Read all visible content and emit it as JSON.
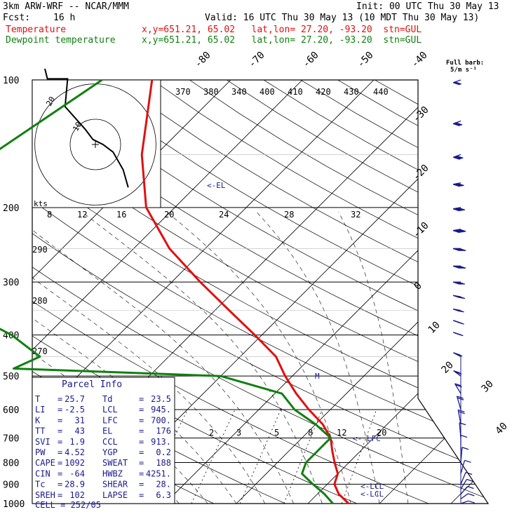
{
  "header": {
    "title": "3km ARW-WRF -- NCAR/MMM",
    "init": "Init: 00 UTC Thu 30 May 13",
    "fcst_label": "Fcst:",
    "fcst_value": "16 h",
    "valid": "Valid: 16 UTC Thu 30 May 13 (10 MDT Thu 30 May 13)",
    "temp_label": "Temperature",
    "temp_info": "x,y=651.21, 65.02   lat,lon= 27.20, -93.20  stn=GUL",
    "dew_label": "Dewpoint temperature",
    "dew_info": "x,y=651.21, 65.02   lat,lon= 27.20, -93.20  stn=GUL"
  },
  "wind_header": {
    "line1": "Full barb:",
    "line2": "5/m s⁻¹"
  },
  "colors": {
    "temperature": "#e01010",
    "dewpoint": "#108010",
    "wind": "#1a1a8c",
    "parcel_text": "#1a1a8c",
    "grid": "#000000"
  },
  "chart_data": {
    "type": "line",
    "title": "",
    "pressure_levels": [
      100,
      200,
      300,
      400,
      500,
      600,
      700,
      800,
      900,
      1000
    ],
    "temp_axis_labels": [
      -80,
      -70,
      -60,
      -50,
      -40,
      -30,
      -20,
      -10,
      0,
      10,
      20,
      30,
      40
    ],
    "theta_labels": [
      370,
      380,
      340,
      400,
      410,
      420,
      430,
      440
    ],
    "mixing_ratio_labels_top": [
      8,
      12,
      16,
      20,
      24,
      28,
      32
    ],
    "mixing_ratio_labels_low": [
      2,
      3,
      5,
      8,
      12,
      20
    ],
    "theta_side_labels": [
      290,
      280,
      270
    ],
    "annotations": [
      "<-EL",
      "<- LFC",
      "<-LCL",
      "<-LCL",
      "M"
    ],
    "series": [
      {
        "name": "Temperature",
        "points": [
          [
            100,
            -61
          ],
          [
            150,
            -52
          ],
          [
            200,
            -44
          ],
          [
            250,
            -35
          ],
          [
            300,
            -26
          ],
          [
            350,
            -18
          ],
          [
            400,
            -11
          ],
          [
            450,
            -5
          ],
          [
            500,
            -1
          ],
          [
            550,
            3
          ],
          [
            600,
            7
          ],
          [
            650,
            11
          ],
          [
            700,
            14
          ],
          [
            750,
            16
          ],
          [
            800,
            18
          ],
          [
            850,
            20
          ],
          [
            900,
            21
          ],
          [
            950,
            23
          ],
          [
            1000,
            25.7
          ]
        ]
      },
      {
        "name": "Dewpoint temperature",
        "points": [
          [
            100,
            -68
          ],
          [
            150,
            -73
          ],
          [
            200,
            -68
          ],
          [
            250,
            -64
          ],
          [
            300,
            -63
          ],
          [
            350,
            -55
          ],
          [
            400,
            -45
          ],
          [
            450,
            -38
          ],
          [
            480,
            -40
          ],
          [
            500,
            -10
          ],
          [
            550,
            1
          ],
          [
            600,
            5
          ],
          [
            650,
            10
          ],
          [
            700,
            14
          ],
          [
            750,
            14
          ],
          [
            800,
            14
          ],
          [
            850,
            15
          ],
          [
            900,
            18
          ],
          [
            950,
            21
          ],
          [
            1000,
            23.5
          ]
        ]
      }
    ],
    "hodograph": {
      "xlabel": "kts",
      "ring_labels": [
        "10",
        "20"
      ],
      "points": [
        [
          -20,
          30
        ],
        [
          -19,
          26
        ],
        [
          -11,
          26
        ],
        [
          -12,
          15
        ],
        [
          -4,
          6
        ],
        [
          -1,
          2
        ],
        [
          3,
          0
        ],
        [
          7,
          -3
        ],
        [
          11,
          -10
        ],
        [
          13,
          -17
        ]
      ]
    },
    "wind_barbs": [
      {
        "p": 100,
        "speed": 15,
        "dir": 280
      },
      {
        "p": 125,
        "speed": 20,
        "dir": 280
      },
      {
        "p": 150,
        "speed": 25,
        "dir": 280
      },
      {
        "p": 175,
        "speed": 30,
        "dir": 275
      },
      {
        "p": 200,
        "speed": 35,
        "dir": 275
      },
      {
        "p": 225,
        "speed": 40,
        "dir": 275
      },
      {
        "p": 250,
        "speed": 40,
        "dir": 270
      },
      {
        "p": 275,
        "speed": 40,
        "dir": 270
      },
      {
        "p": 300,
        "speed": 35,
        "dir": 270
      },
      {
        "p": 325,
        "speed": 35,
        "dir": 265
      },
      {
        "p": 350,
        "speed": 30,
        "dir": 265
      },
      {
        "p": 375,
        "speed": 30,
        "dir": 260
      },
      {
        "p": 400,
        "speed": 25,
        "dir": 260
      },
      {
        "p": 450,
        "speed": 20,
        "dir": 255
      },
      {
        "p": 500,
        "speed": 15,
        "dir": 250
      },
      {
        "p": 550,
        "speed": 10,
        "dir": 230
      },
      {
        "p": 600,
        "speed": 10,
        "dir": 210
      },
      {
        "p": 650,
        "speed": 10,
        "dir": 200
      },
      {
        "p": 700,
        "speed": 5,
        "dir": 190
      },
      {
        "p": 750,
        "speed": 5,
        "dir": 180
      },
      {
        "p": 800,
        "speed": 5,
        "dir": 170
      },
      {
        "p": 850,
        "speed": 5,
        "dir": 150
      },
      {
        "p": 900,
        "speed": 5,
        "dir": 140
      },
      {
        "p": 925,
        "speed": 5,
        "dir": 130
      },
      {
        "p": 950,
        "speed": 5,
        "dir": 120
      },
      {
        "p": 975,
        "speed": 5,
        "dir": 110
      },
      {
        "p": 1000,
        "speed": 5,
        "dir": 100
      }
    ]
  },
  "parcel": {
    "title": "Parcel Info",
    "rows": [
      [
        "T",
        "=",
        "25.7",
        "Td",
        "=",
        "23.5"
      ],
      [
        "LI",
        "=",
        "-2.5",
        "LCL",
        "=",
        "945."
      ],
      [
        "K",
        "=",
        "31",
        "LFC",
        "=",
        "700."
      ],
      [
        "TT",
        "=",
        "43",
        "EL",
        "=",
        "176"
      ],
      [
        "SVI",
        "=",
        "1.9",
        "CCL",
        "=",
        "913."
      ],
      [
        "PW",
        "=",
        "4.52",
        "YGP",
        "=",
        "0.2"
      ],
      [
        "CAPE",
        "=",
        "1092",
        "SWEAT",
        "=",
        "188"
      ],
      [
        "CIN",
        "=",
        "-64",
        "HWBZ",
        "=",
        "4251."
      ],
      [
        "Tc",
        "=",
        "28.9",
        "SHEAR",
        "=",
        "28."
      ],
      [
        "SREH",
        "=",
        "102",
        "LAPSE",
        "=",
        "6.3"
      ]
    ],
    "cell_label": "CELL = 252/05"
  }
}
